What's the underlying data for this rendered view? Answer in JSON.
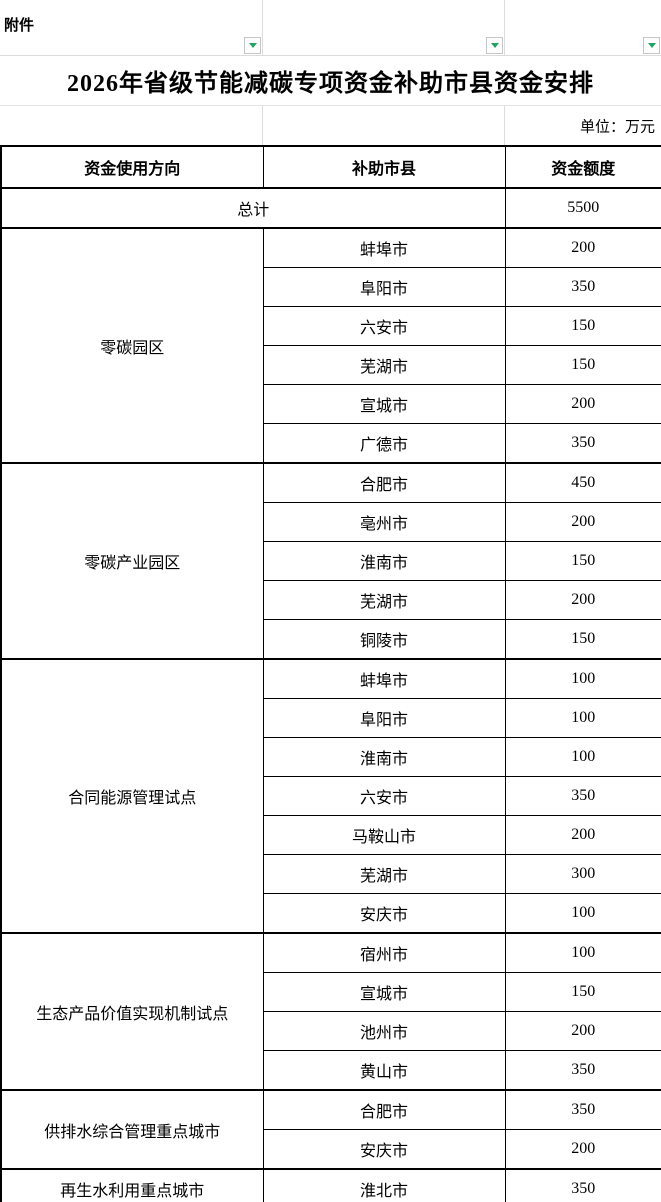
{
  "attachment_label": "附件",
  "title": "2026年省级节能减碳专项资金补助市县资金安排",
  "unit_label": "单位：万元",
  "columns": [
    "资金使用方向",
    "补助市县",
    "资金额度"
  ],
  "total": {
    "label": "总计",
    "value": "5500"
  },
  "groups": [
    {
      "direction": "零碳园区",
      "rows": [
        [
          "蚌埠市",
          "200"
        ],
        [
          "阜阳市",
          "350"
        ],
        [
          "六安市",
          "150"
        ],
        [
          "芜湖市",
          "150"
        ],
        [
          "宣城市",
          "200"
        ],
        [
          "广德市",
          "350"
        ]
      ]
    },
    {
      "direction": "零碳产业园区",
      "rows": [
        [
          "合肥市",
          "450"
        ],
        [
          "亳州市",
          "200"
        ],
        [
          "淮南市",
          "150"
        ],
        [
          "芜湖市",
          "200"
        ],
        [
          "铜陵市",
          "150"
        ]
      ]
    },
    {
      "direction": "合同能源管理试点",
      "rows": [
        [
          "蚌埠市",
          "100"
        ],
        [
          "阜阳市",
          "100"
        ],
        [
          "淮南市",
          "100"
        ],
        [
          "六安市",
          "350"
        ],
        [
          "马鞍山市",
          "200"
        ],
        [
          "芜湖市",
          "300"
        ],
        [
          "安庆市",
          "100"
        ]
      ]
    },
    {
      "direction": "生态产品价值实现机制试点",
      "rows": [
        [
          "宿州市",
          "100"
        ],
        [
          "宣城市",
          "150"
        ],
        [
          "池州市",
          "200"
        ],
        [
          "黄山市",
          "350"
        ]
      ]
    },
    {
      "direction": "供排水综合管理重点城市",
      "rows": [
        [
          "合肥市",
          "350"
        ],
        [
          "安庆市",
          "200"
        ]
      ]
    },
    {
      "direction": "再生水利用重点城市",
      "rows": [
        [
          "淮北市",
          "350"
        ]
      ]
    }
  ],
  "filter_buttons": [
    {
      "icon": "filter-dropdown-icon",
      "column": "资金使用方向"
    },
    {
      "icon": "filter-dropdown-icon",
      "column": "补助市县"
    },
    {
      "icon": "filter-dropdown-icon",
      "column": "资金额度"
    }
  ],
  "colors": {
    "filter_arrow_green": "#21A366",
    "light_grid_line": "#DCDCDC",
    "table_border": "#000000",
    "background": "#FFFFFF"
  }
}
